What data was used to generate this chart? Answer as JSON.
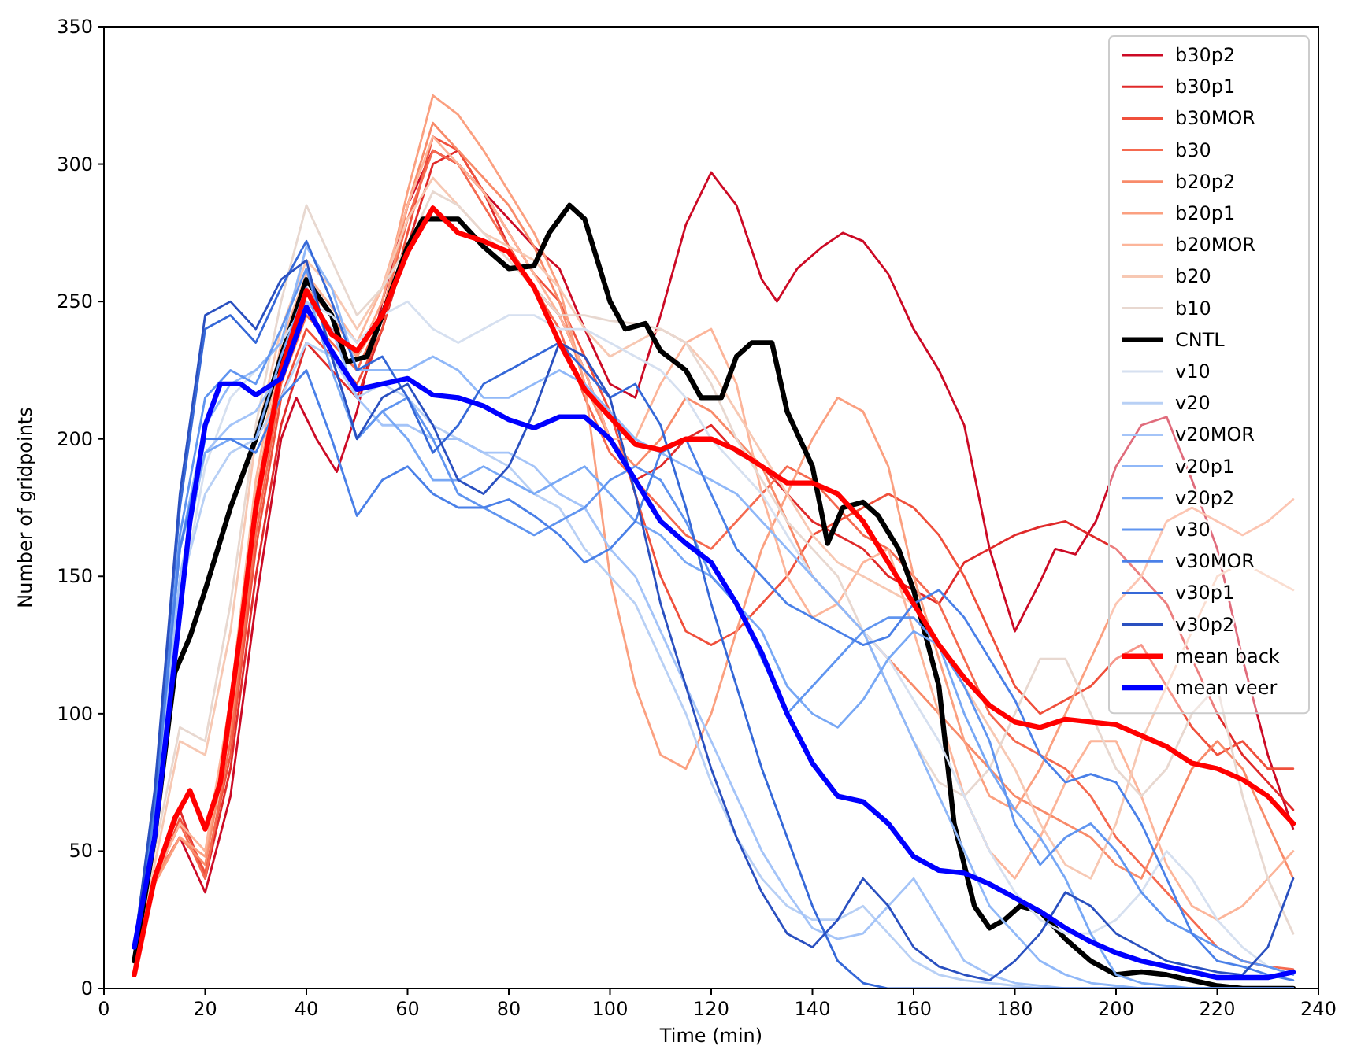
{
  "chart_data": {
    "type": "line",
    "xlabel": "Time (min)",
    "ylabel": "Number of gridpoints",
    "xlim": [
      0,
      240
    ],
    "ylim": [
      0,
      350
    ],
    "xticks": [
      0,
      20,
      40,
      60,
      80,
      100,
      120,
      140,
      160,
      180,
      200,
      220,
      240
    ],
    "yticks": [
      0,
      50,
      100,
      150,
      200,
      250,
      300,
      350
    ],
    "legend": "top right",
    "grid": false,
    "x": [
      6,
      10,
      15,
      20,
      25,
      30,
      35,
      40,
      45,
      50,
      55,
      60,
      65,
      70,
      75,
      80,
      85,
      90,
      95,
      100,
      105,
      110,
      115,
      120,
      125,
      130,
      135,
      140,
      145,
      150,
      155,
      160,
      165,
      170,
      175,
      180,
      185,
      190,
      195,
      200,
      205,
      210,
      215,
      220,
      225,
      230,
      235
    ],
    "series": [
      {
        "name": "b30p2",
        "color": "#cc0a25",
        "x": [
          6,
          10,
          15,
          20,
          25,
          30,
          35,
          38,
          42,
          46,
          50,
          55,
          60,
          65,
          70,
          75,
          80,
          85,
          90,
          95,
          100,
          105,
          110,
          115,
          120,
          125,
          130,
          133,
          137,
          142,
          146,
          150,
          155,
          160,
          165,
          170,
          175,
          180,
          185,
          188,
          192,
          196,
          200,
          205,
          210,
          215,
          220,
          225,
          230,
          235
        ],
        "values": [
          5,
          40,
          55,
          35,
          70,
          140,
          200,
          215,
          200,
          188,
          210,
          250,
          285,
          305,
          300,
          290,
          280,
          270,
          262,
          240,
          220,
          215,
          245,
          278,
          297,
          285,
          258,
          250,
          262,
          270,
          275,
          272,
          260,
          240,
          225,
          205,
          160,
          130,
          148,
          160,
          158,
          170,
          190,
          205,
          208,
          185,
          160,
          120,
          85,
          58
        ]
      },
      {
        "name": "b30p1",
        "color": "#e02a2a",
        "values": [
          5,
          40,
          65,
          40,
          80,
          150,
          205,
          235,
          225,
          215,
          240,
          270,
          300,
          305,
          290,
          270,
          255,
          245,
          225,
          200,
          185,
          190,
          200,
          205,
          195,
          190,
          180,
          170,
          165,
          160,
          150,
          145,
          140,
          155,
          160,
          165,
          168,
          170,
          165,
          160,
          150,
          140,
          120,
          100,
          85,
          75,
          65
        ]
      },
      {
        "name": "b30MOR",
        "color": "#f0503c",
        "values": [
          5,
          38,
          62,
          42,
          85,
          160,
          215,
          240,
          230,
          220,
          240,
          275,
          310,
          305,
          290,
          275,
          260,
          250,
          230,
          210,
          180,
          150,
          130,
          125,
          130,
          140,
          150,
          165,
          170,
          175,
          180,
          175,
          165,
          150,
          130,
          110,
          100,
          105,
          110,
          120,
          125,
          110,
          95,
          85,
          90,
          80,
          80
        ]
      },
      {
        "name": "b30",
        "color": "#f56a50",
        "values": [
          5,
          40,
          60,
          40,
          90,
          165,
          220,
          245,
          235,
          225,
          245,
          280,
          305,
          300,
          285,
          270,
          255,
          240,
          215,
          195,
          185,
          175,
          165,
          160,
          170,
          180,
          190,
          185,
          175,
          165,
          160,
          150,
          140,
          120,
          100,
          90,
          85,
          80,
          70,
          55,
          45,
          35,
          25,
          15,
          10,
          8,
          7
        ]
      },
      {
        "name": "b20p2",
        "color": "#f88b6a",
        "values": [
          5,
          40,
          55,
          45,
          95,
          170,
          225,
          250,
          240,
          230,
          245,
          285,
          315,
          305,
          295,
          285,
          270,
          250,
          220,
          200,
          190,
          200,
          215,
          210,
          200,
          190,
          170,
          150,
          140,
          130,
          120,
          110,
          100,
          90,
          80,
          70,
          65,
          60,
          55,
          45,
          40,
          60,
          80,
          90,
          80,
          60,
          40
        ]
      },
      {
        "name": "b20p1",
        "color": "#fba080",
        "values": [
          5,
          38,
          55,
          48,
          100,
          180,
          230,
          255,
          245,
          230,
          250,
          290,
          325,
          318,
          305,
          290,
          275,
          255,
          220,
          150,
          110,
          85,
          80,
          100,
          130,
          160,
          180,
          200,
          215,
          210,
          190,
          150,
          120,
          90,
          70,
          65,
          80,
          100,
          120,
          140,
          150,
          170,
          175,
          170,
          165,
          170,
          178
        ]
      },
      {
        "name": "b20MOR",
        "color": "#fcb59a",
        "values": [
          5,
          40,
          60,
          50,
          105,
          185,
          235,
          260,
          248,
          235,
          255,
          285,
          310,
          300,
          290,
          275,
          260,
          245,
          225,
          200,
          200,
          220,
          235,
          240,
          220,
          180,
          150,
          135,
          140,
          155,
          160,
          130,
          100,
          70,
          50,
          40,
          55,
          75,
          90,
          90,
          70,
          45,
          30,
          25,
          30,
          40,
          50
        ]
      },
      {
        "name": "b20",
        "color": "#f7c8b3",
        "values": [
          8,
          45,
          90,
          85,
          130,
          200,
          240,
          265,
          255,
          240,
          255,
          280,
          295,
          285,
          275,
          270,
          265,
          255,
          240,
          230,
          235,
          240,
          235,
          225,
          210,
          195,
          180,
          165,
          155,
          150,
          145,
          140,
          125,
          110,
          95,
          80,
          60,
          45,
          40,
          60,
          90,
          110,
          130,
          150,
          155,
          150,
          145
        ]
      },
      {
        "name": "b10",
        "color": "#e8d8d0",
        "values": [
          8,
          50,
          95,
          90,
          140,
          205,
          250,
          285,
          265,
          245,
          255,
          270,
          290,
          285,
          275,
          265,
          255,
          245,
          245,
          243,
          242,
          240,
          235,
          220,
          200,
          185,
          170,
          160,
          150,
          130,
          110,
          90,
          75,
          70,
          80,
          100,
          120,
          120,
          100,
          80,
          70,
          80,
          100,
          110,
          70,
          40,
          20
        ]
      },
      {
        "name": "CNTL",
        "color": "#000000",
        "x": [
          6,
          10,
          14,
          17,
          20,
          25,
          30,
          35,
          40,
          45,
          48,
          52,
          55,
          60,
          63,
          70,
          75,
          80,
          85,
          88,
          92,
          95,
          100,
          103,
          107,
          110,
          115,
          118,
          122,
          125,
          128,
          132,
          135,
          140,
          143,
          146,
          150,
          153,
          157,
          160,
          165,
          168,
          172,
          175,
          178,
          181,
          185,
          190,
          195,
          200,
          205,
          210,
          215,
          220,
          225,
          230,
          235
        ],
        "values": [
          10,
          55,
          115,
          128,
          145,
          175,
          200,
          230,
          258,
          245,
          228,
          230,
          245,
          270,
          280,
          280,
          270,
          262,
          263,
          275,
          285,
          280,
          250,
          240,
          242,
          232,
          225,
          215,
          215,
          230,
          235,
          235,
          210,
          190,
          162,
          175,
          177,
          172,
          160,
          145,
          110,
          60,
          30,
          22,
          25,
          30,
          28,
          18,
          10,
          5,
          6,
          5,
          3,
          1,
          0,
          0,
          0
        ]
      },
      {
        "name": "v10",
        "color": "#d6e0f0",
        "values": [
          15,
          60,
          140,
          190,
          215,
          225,
          235,
          250,
          245,
          235,
          245,
          250,
          240,
          235,
          240,
          245,
          245,
          240,
          240,
          235,
          230,
          225,
          215,
          200,
          190,
          180,
          165,
          150,
          140,
          130,
          120,
          105,
          90,
          70,
          50,
          35,
          25,
          20,
          20,
          25,
          35,
          50,
          40,
          25,
          15,
          8,
          5
        ]
      },
      {
        "name": "v20",
        "color": "#b8d0f5",
        "values": [
          15,
          60,
          145,
          180,
          195,
          200,
          215,
          235,
          230,
          215,
          220,
          215,
          205,
          200,
          195,
          190,
          180,
          175,
          160,
          150,
          140,
          120,
          100,
          75,
          55,
          40,
          30,
          25,
          25,
          30,
          20,
          10,
          5,
          3,
          2,
          1,
          0,
          0,
          0,
          0,
          0,
          0,
          0,
          0,
          0,
          0,
          0
        ]
      },
      {
        "name": "v20MOR",
        "color": "#a4c4f8",
        "values": [
          15,
          65,
          150,
          195,
          205,
          210,
          225,
          250,
          240,
          215,
          205,
          205,
          200,
          200,
          195,
          195,
          190,
          180,
          175,
          160,
          150,
          130,
          110,
          90,
          70,
          50,
          35,
          22,
          18,
          20,
          30,
          40,
          25,
          10,
          5,
          2,
          1,
          0,
          0,
          0,
          0,
          0,
          0,
          0,
          0,
          0,
          0
        ]
      },
      {
        "name": "v20p1",
        "color": "#90b8f8",
        "values": [
          15,
          65,
          160,
          205,
          220,
          225,
          235,
          270,
          255,
          225,
          225,
          225,
          230,
          225,
          215,
          215,
          220,
          225,
          220,
          210,
          200,
          195,
          190,
          185,
          180,
          170,
          160,
          150,
          140,
          130,
          110,
          90,
          70,
          50,
          30,
          20,
          10,
          5,
          2,
          1,
          0,
          0,
          0,
          0,
          0,
          0,
          0
        ]
      },
      {
        "name": "v20p2",
        "color": "#78a8f5",
        "values": [
          15,
          65,
          160,
          195,
          200,
          200,
          230,
          255,
          225,
          200,
          210,
          200,
          185,
          185,
          190,
          185,
          180,
          185,
          190,
          180,
          170,
          165,
          155,
          150,
          140,
          130,
          110,
          100,
          95,
          105,
          120,
          130,
          125,
          100,
          80,
          65,
          55,
          40,
          20,
          5,
          2,
          1,
          0,
          0,
          0,
          0,
          0
        ]
      },
      {
        "name": "v30",
        "color": "#6095f0",
        "values": [
          15,
          65,
          165,
          215,
          225,
          220,
          240,
          262,
          230,
          200,
          210,
          215,
          200,
          180,
          175,
          170,
          165,
          170,
          175,
          185,
          190,
          185,
          170,
          150,
          140,
          120,
          100,
          110,
          120,
          130,
          135,
          135,
          125,
          110,
          90,
          60,
          45,
          55,
          60,
          50,
          35,
          25,
          20,
          15,
          10,
          8,
          5
        ]
      },
      {
        "name": "v30MOR",
        "color": "#4a80e8",
        "values": [
          15,
          65,
          160,
          200,
          200,
          195,
          215,
          225,
          200,
          172,
          185,
          190,
          180,
          175,
          175,
          178,
          172,
          165,
          155,
          160,
          170,
          195,
          200,
          180,
          160,
          150,
          140,
          135,
          130,
          125,
          128,
          140,
          145,
          135,
          120,
          105,
          85,
          75,
          78,
          75,
          60,
          40,
          20,
          10,
          8,
          5,
          3
        ]
      },
      {
        "name": "v30p1",
        "color": "#3568d8",
        "values": [
          15,
          70,
          175,
          240,
          245,
          235,
          255,
          272,
          250,
          225,
          230,
          215,
          195,
          205,
          220,
          225,
          230,
          235,
          225,
          215,
          220,
          205,
          175,
          140,
          110,
          80,
          55,
          30,
          10,
          2,
          0,
          0,
          0,
          0,
          0,
          0,
          0,
          0,
          0,
          0,
          0,
          0,
          0,
          0,
          0,
          0,
          0
        ]
      },
      {
        "name": "v30p2",
        "color": "#2a50c0",
        "values": [
          15,
          72,
          180,
          245,
          250,
          240,
          258,
          265,
          230,
          200,
          215,
          220,
          205,
          185,
          180,
          190,
          210,
          235,
          230,
          215,
          180,
          140,
          110,
          80,
          55,
          35,
          20,
          15,
          25,
          40,
          30,
          15,
          8,
          5,
          3,
          10,
          20,
          35,
          30,
          20,
          15,
          10,
          8,
          6,
          5,
          15,
          40
        ]
      },
      {
        "name": "mean back",
        "color": "#ff0000",
        "x": [
          6,
          10,
          14,
          17,
          20,
          23,
          27,
          30,
          35,
          40,
          45,
          50,
          55,
          60,
          65,
          70,
          75,
          80,
          85,
          90,
          95,
          100,
          105,
          110,
          115,
          120,
          125,
          130,
          135,
          140,
          145,
          150,
          155,
          160,
          165,
          170,
          175,
          180,
          185,
          190,
          195,
          200,
          205,
          210,
          215,
          220,
          225,
          230,
          235
        ],
        "values": [
          5,
          40,
          62,
          72,
          58,
          75,
          130,
          175,
          225,
          254,
          238,
          232,
          245,
          268,
          284,
          275,
          272,
          268,
          255,
          235,
          218,
          208,
          198,
          196,
          200,
          200,
          196,
          190,
          184,
          184,
          180,
          170,
          155,
          140,
          125,
          113,
          103,
          97,
          95,
          98,
          97,
          96,
          92,
          88,
          82,
          80,
          76,
          70,
          60
        ]
      },
      {
        "name": "mean veer",
        "color": "#0000ff",
        "x": [
          6,
          10,
          14,
          17,
          20,
          23,
          27,
          30,
          35,
          40,
          45,
          50,
          55,
          60,
          65,
          70,
          75,
          80,
          85,
          90,
          95,
          100,
          105,
          110,
          115,
          120,
          125,
          130,
          135,
          140,
          145,
          150,
          155,
          160,
          165,
          170,
          175,
          180,
          185,
          190,
          195,
          200,
          205,
          210,
          215,
          220,
          225,
          230,
          235
        ],
        "values": [
          15,
          55,
          120,
          170,
          205,
          220,
          220,
          216,
          222,
          248,
          232,
          218,
          220,
          222,
          216,
          215,
          212,
          207,
          204,
          208,
          208,
          200,
          185,
          170,
          162,
          155,
          140,
          122,
          100,
          82,
          70,
          68,
          60,
          48,
          43,
          42,
          38,
          33,
          28,
          22,
          17,
          13,
          10,
          8,
          6,
          4,
          4,
          4,
          6
        ]
      }
    ]
  }
}
